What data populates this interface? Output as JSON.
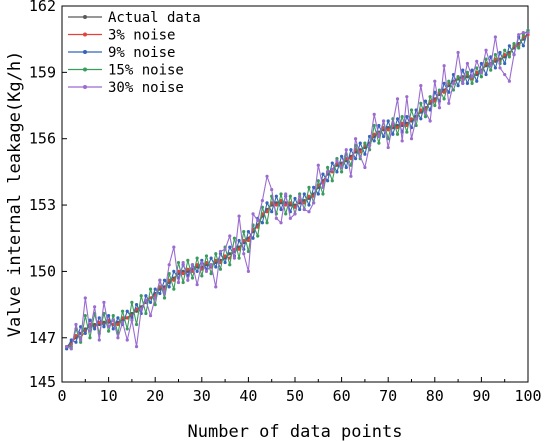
{
  "chart_data": {
    "type": "line",
    "title": "",
    "xlabel": "Number of data points",
    "ylabel": "Valve internal leakage(Kg/h)",
    "xlim": [
      0,
      100
    ],
    "ylim": [
      145,
      162
    ],
    "xticks": [
      0,
      10,
      20,
      30,
      40,
      50,
      60,
      70,
      80,
      90,
      100
    ],
    "yticks": [
      145,
      147,
      150,
      153,
      156,
      159,
      162
    ],
    "grid": false,
    "legend_position": "top-left",
    "x": [
      1,
      2,
      3,
      4,
      5,
      6,
      7,
      8,
      9,
      10,
      11,
      12,
      13,
      14,
      15,
      16,
      17,
      18,
      19,
      20,
      21,
      22,
      23,
      24,
      25,
      26,
      27,
      28,
      29,
      30,
      31,
      32,
      33,
      34,
      35,
      36,
      37,
      38,
      39,
      40,
      41,
      42,
      43,
      44,
      45,
      46,
      47,
      48,
      49,
      50,
      51,
      52,
      53,
      54,
      55,
      56,
      57,
      58,
      59,
      60,
      61,
      62,
      63,
      64,
      65,
      66,
      67,
      68,
      69,
      70,
      71,
      72,
      73,
      74,
      75,
      76,
      77,
      78,
      79,
      80,
      81,
      82,
      83,
      84,
      85,
      86,
      87,
      88,
      89,
      90,
      91,
      92,
      93,
      94,
      95,
      96,
      97,
      98,
      99,
      100
    ],
    "series": [
      {
        "name": "Actual data",
        "color": "#595959",
        "values": [
          146.6,
          146.8,
          147.0,
          147.2,
          147.4,
          147.5,
          147.6,
          147.6,
          147.7,
          147.7,
          147.6,
          147.7,
          147.8,
          147.9,
          148.1,
          148.2,
          148.4,
          148.6,
          148.8,
          149.0,
          149.2,
          149.3,
          149.5,
          149.7,
          149.9,
          150.0,
          150.0,
          150.1,
          150.2,
          150.2,
          150.3,
          150.3,
          150.4,
          150.5,
          150.6,
          150.8,
          150.9,
          151.1,
          151.3,
          151.5,
          151.8,
          152.1,
          152.5,
          152.8,
          153.0,
          153.1,
          153.1,
          153.1,
          153.0,
          153.0,
          153.1,
          153.2,
          153.3,
          153.5,
          153.8,
          154.1,
          154.4,
          154.6,
          154.8,
          154.9,
          155.0,
          155.2,
          155.4,
          155.5,
          155.6,
          155.8,
          156.1,
          156.3,
          156.4,
          156.5,
          156.5,
          156.6,
          156.6,
          156.7,
          156.8,
          157.0,
          157.2,
          157.4,
          157.6,
          157.8,
          158.0,
          158.2,
          158.4,
          158.6,
          158.7,
          158.8,
          158.8,
          158.8,
          158.9,
          159.1,
          159.3,
          159.4,
          159.5,
          159.6,
          159.7,
          159.9,
          160.1,
          160.3,
          160.5,
          160.8
        ]
      },
      {
        "name": "3% noise",
        "color": "#e2423b",
        "values": [
          146.6,
          146.7,
          147.1,
          147.0,
          147.3,
          147.6,
          147.5,
          147.7,
          147.6,
          147.8,
          147.6,
          147.6,
          147.9,
          147.9,
          148.0,
          148.3,
          148.3,
          148.7,
          148.8,
          148.9,
          149.3,
          149.2,
          149.6,
          149.6,
          150.0,
          149.9,
          150.1,
          150.0,
          150.3,
          150.1,
          150.4,
          150.2,
          150.5,
          150.4,
          150.7,
          150.6,
          151.0,
          151.0,
          151.4,
          151.4,
          151.9,
          152.0,
          152.6,
          152.7,
          153.1,
          153.0,
          153.2,
          153.0,
          153.1,
          152.9,
          153.2,
          153.1,
          153.4,
          153.4,
          153.9,
          154.0,
          154.5,
          154.5,
          154.9,
          154.8,
          155.1,
          155.1,
          155.5,
          155.4,
          155.7,
          155.7,
          156.2,
          156.2,
          156.5,
          156.4,
          156.6,
          156.5,
          156.7,
          156.6,
          156.9,
          156.9,
          157.3,
          157.3,
          157.7,
          157.7,
          158.1,
          158.1,
          158.5,
          158.5,
          158.8,
          158.7,
          158.9,
          158.7,
          159.0,
          159.0,
          159.4,
          159.3,
          159.6,
          159.5,
          159.8,
          159.8,
          160.2,
          160.2,
          160.6,
          160.7
        ]
      },
      {
        "name": "9% noise",
        "color": "#3465b8",
        "values": [
          146.5,
          146.9,
          146.8,
          147.5,
          147.2,
          147.8,
          147.4,
          147.9,
          147.5,
          148.0,
          147.4,
          147.9,
          147.6,
          148.2,
          147.9,
          148.5,
          148.1,
          148.9,
          148.6,
          149.2,
          149.0,
          149.6,
          149.3,
          150.0,
          149.7,
          150.3,
          149.8,
          150.3,
          150.0,
          150.5,
          150.1,
          150.6,
          150.2,
          150.8,
          150.4,
          151.1,
          150.7,
          151.4,
          151.0,
          151.8,
          151.5,
          152.4,
          152.2,
          153.1,
          152.7,
          153.4,
          152.8,
          153.4,
          152.7,
          153.3,
          152.8,
          153.5,
          153.0,
          153.8,
          153.5,
          154.4,
          154.1,
          154.9,
          154.5,
          155.2,
          154.7,
          155.5,
          155.1,
          155.8,
          155.3,
          156.1,
          155.9,
          156.6,
          156.1,
          156.8,
          156.2,
          156.9,
          156.3,
          157.0,
          156.5,
          157.3,
          156.9,
          157.7,
          157.3,
          158.1,
          157.7,
          158.5,
          158.1,
          158.9,
          158.4,
          159.1,
          158.5,
          159.1,
          158.6,
          159.4,
          158.9,
          159.7,
          159.2,
          159.9,
          159.4,
          160.2,
          159.8,
          160.6,
          160.2,
          160.9
        ]
      },
      {
        "name": "15% noise",
        "color": "#3a9c5a",
        "values": [
          146.6,
          146.6,
          147.4,
          146.8,
          148.0,
          147.0,
          148.1,
          147.2,
          148.1,
          147.3,
          148.0,
          147.2,
          148.2,
          147.4,
          148.6,
          147.6,
          148.9,
          148.1,
          149.2,
          148.5,
          149.6,
          148.8,
          149.9,
          149.2,
          150.4,
          149.5,
          150.5,
          149.7,
          150.6,
          149.8,
          150.7,
          149.9,
          150.8,
          150.1,
          151.1,
          150.3,
          151.5,
          150.6,
          151.8,
          150.9,
          152.1,
          151.6,
          152.9,
          152.2,
          153.4,
          152.6,
          153.5,
          152.6,
          153.4,
          152.6,
          153.5,
          152.8,
          153.8,
          153.1,
          154.1,
          153.5,
          154.7,
          154.1,
          155.1,
          154.5,
          155.3,
          154.8,
          155.7,
          155.1,
          155.8,
          155.5,
          156.6,
          155.8,
          156.8,
          156.0,
          156.9,
          156.2,
          157.0,
          156.3,
          157.3,
          156.6,
          157.6,
          157.0,
          157.9,
          157.5,
          158.2,
          157.8,
          158.6,
          158.2,
          158.8,
          158.5,
          159.0,
          158.5,
          159.2,
          158.8,
          159.6,
          159.1,
          159.8,
          159.4,
          160.0,
          159.7,
          160.3,
          160.1,
          160.7,
          160.9
        ]
      },
      {
        "name": "30% noise",
        "color": "#9b6bd1",
        "values": [
          146.6,
          146.5,
          147.6,
          146.9,
          148.8,
          147.3,
          148.4,
          146.9,
          148.6,
          147.5,
          147.8,
          147.0,
          147.7,
          146.9,
          147.8,
          146.6,
          148.3,
          148.7,
          148.0,
          148.8,
          149.6,
          149.0,
          150.3,
          151.1,
          149.5,
          150.4,
          149.6,
          150.3,
          149.4,
          150.4,
          150.0,
          150.3,
          149.3,
          150.9,
          151.0,
          151.6,
          150.6,
          152.5,
          150.8,
          150.0,
          152.6,
          152.3,
          153.2,
          154.3,
          153.7,
          152.4,
          152.2,
          153.5,
          152.4,
          152.6,
          153.4,
          152.8,
          152.7,
          153.1,
          154.8,
          153.8,
          154.5,
          154.6,
          155.0,
          154.7,
          155.5,
          154.3,
          156.0,
          155.2,
          154.7,
          155.7,
          157.1,
          156.1,
          156.8,
          155.6,
          156.7,
          157.8,
          155.9,
          157.9,
          156.0,
          156.9,
          158.4,
          157.2,
          156.8,
          158.6,
          157.4,
          159.3,
          157.6,
          158.5,
          159.9,
          158.5,
          159.4,
          158.8,
          159.5,
          159.0,
          160.0,
          159.3,
          160.6,
          159.2,
          158.9,
          158.6,
          159.8,
          160.7,
          160.8,
          160.8
        ]
      }
    ]
  }
}
